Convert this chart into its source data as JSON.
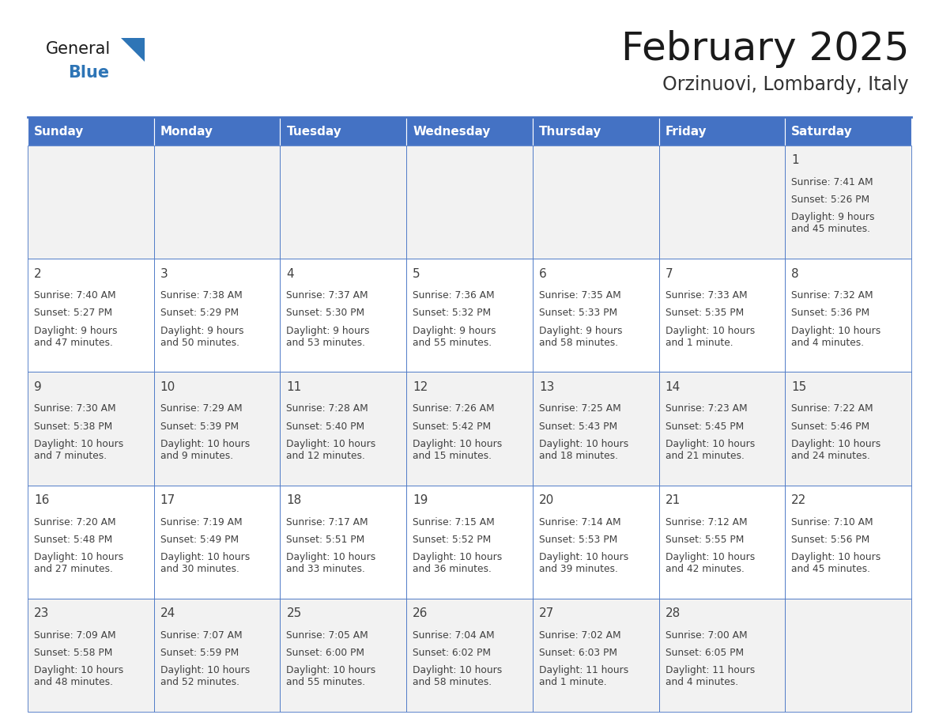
{
  "title": "February 2025",
  "subtitle": "Orzinuovi, Lombardy, Italy",
  "days_of_week": [
    "Sunday",
    "Monday",
    "Tuesday",
    "Wednesday",
    "Thursday",
    "Friday",
    "Saturday"
  ],
  "header_bg": "#4472C4",
  "header_fg": "#FFFFFF",
  "cell_bg_odd": "#F2F2F2",
  "cell_bg_even": "#FFFFFF",
  "border_color": "#4472C4",
  "text_color": "#404040",
  "title_color": "#1a1a1a",
  "subtitle_color": "#333333",
  "logo_general_color": "#1a1a1a",
  "logo_blue_color": "#2E75B6",
  "calendar_data": [
    [
      null,
      null,
      null,
      null,
      null,
      null,
      {
        "day": 1,
        "sunrise": "7:41 AM",
        "sunset": "5:26 PM",
        "daylight": "9 hours\nand 45 minutes."
      }
    ],
    [
      {
        "day": 2,
        "sunrise": "7:40 AM",
        "sunset": "5:27 PM",
        "daylight": "9 hours\nand 47 minutes."
      },
      {
        "day": 3,
        "sunrise": "7:38 AM",
        "sunset": "5:29 PM",
        "daylight": "9 hours\nand 50 minutes."
      },
      {
        "day": 4,
        "sunrise": "7:37 AM",
        "sunset": "5:30 PM",
        "daylight": "9 hours\nand 53 minutes."
      },
      {
        "day": 5,
        "sunrise": "7:36 AM",
        "sunset": "5:32 PM",
        "daylight": "9 hours\nand 55 minutes."
      },
      {
        "day": 6,
        "sunrise": "7:35 AM",
        "sunset": "5:33 PM",
        "daylight": "9 hours\nand 58 minutes."
      },
      {
        "day": 7,
        "sunrise": "7:33 AM",
        "sunset": "5:35 PM",
        "daylight": "10 hours\nand 1 minute."
      },
      {
        "day": 8,
        "sunrise": "7:32 AM",
        "sunset": "5:36 PM",
        "daylight": "10 hours\nand 4 minutes."
      }
    ],
    [
      {
        "day": 9,
        "sunrise": "7:30 AM",
        "sunset": "5:38 PM",
        "daylight": "10 hours\nand 7 minutes."
      },
      {
        "day": 10,
        "sunrise": "7:29 AM",
        "sunset": "5:39 PM",
        "daylight": "10 hours\nand 9 minutes."
      },
      {
        "day": 11,
        "sunrise": "7:28 AM",
        "sunset": "5:40 PM",
        "daylight": "10 hours\nand 12 minutes."
      },
      {
        "day": 12,
        "sunrise": "7:26 AM",
        "sunset": "5:42 PM",
        "daylight": "10 hours\nand 15 minutes."
      },
      {
        "day": 13,
        "sunrise": "7:25 AM",
        "sunset": "5:43 PM",
        "daylight": "10 hours\nand 18 minutes."
      },
      {
        "day": 14,
        "sunrise": "7:23 AM",
        "sunset": "5:45 PM",
        "daylight": "10 hours\nand 21 minutes."
      },
      {
        "day": 15,
        "sunrise": "7:22 AM",
        "sunset": "5:46 PM",
        "daylight": "10 hours\nand 24 minutes."
      }
    ],
    [
      {
        "day": 16,
        "sunrise": "7:20 AM",
        "sunset": "5:48 PM",
        "daylight": "10 hours\nand 27 minutes."
      },
      {
        "day": 17,
        "sunrise": "7:19 AM",
        "sunset": "5:49 PM",
        "daylight": "10 hours\nand 30 minutes."
      },
      {
        "day": 18,
        "sunrise": "7:17 AM",
        "sunset": "5:51 PM",
        "daylight": "10 hours\nand 33 minutes."
      },
      {
        "day": 19,
        "sunrise": "7:15 AM",
        "sunset": "5:52 PM",
        "daylight": "10 hours\nand 36 minutes."
      },
      {
        "day": 20,
        "sunrise": "7:14 AM",
        "sunset": "5:53 PM",
        "daylight": "10 hours\nand 39 minutes."
      },
      {
        "day": 21,
        "sunrise": "7:12 AM",
        "sunset": "5:55 PM",
        "daylight": "10 hours\nand 42 minutes."
      },
      {
        "day": 22,
        "sunrise": "7:10 AM",
        "sunset": "5:56 PM",
        "daylight": "10 hours\nand 45 minutes."
      }
    ],
    [
      {
        "day": 23,
        "sunrise": "7:09 AM",
        "sunset": "5:58 PM",
        "daylight": "10 hours\nand 48 minutes."
      },
      {
        "day": 24,
        "sunrise": "7:07 AM",
        "sunset": "5:59 PM",
        "daylight": "10 hours\nand 52 minutes."
      },
      {
        "day": 25,
        "sunrise": "7:05 AM",
        "sunset": "6:00 PM",
        "daylight": "10 hours\nand 55 minutes."
      },
      {
        "day": 26,
        "sunrise": "7:04 AM",
        "sunset": "6:02 PM",
        "daylight": "10 hours\nand 58 minutes."
      },
      {
        "day": 27,
        "sunrise": "7:02 AM",
        "sunset": "6:03 PM",
        "daylight": "11 hours\nand 1 minute."
      },
      {
        "day": 28,
        "sunrise": "7:00 AM",
        "sunset": "6:05 PM",
        "daylight": "11 hours\nand 4 minutes."
      },
      null
    ]
  ]
}
